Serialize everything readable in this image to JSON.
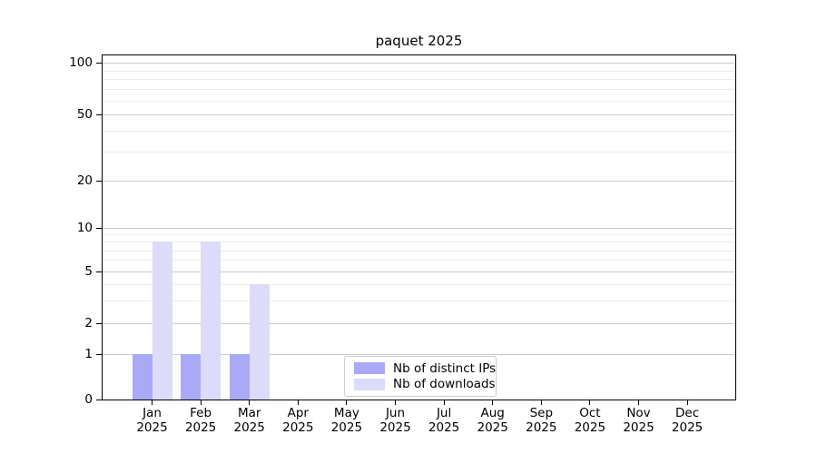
{
  "chart_data": {
    "type": "bar",
    "title": "paquet 2025",
    "categories": [
      "Jan",
      "Feb",
      "Mar",
      "Apr",
      "May",
      "Jun",
      "Jul",
      "Aug",
      "Sep",
      "Oct",
      "Nov",
      "Dec"
    ],
    "year_label": "2025",
    "series": [
      {
        "name": "Nb of distinct IPs",
        "color": "#aaa9f7",
        "values": [
          1,
          1,
          1,
          0,
          0,
          0,
          0,
          0,
          0,
          0,
          0,
          0
        ]
      },
      {
        "name": "Nb of downloads",
        "color": "#dcdbfa",
        "values": [
          8,
          8,
          4,
          0,
          0,
          0,
          0,
          0,
          0,
          0,
          0,
          0
        ]
      }
    ],
    "y_axis": {
      "scale": "symlog",
      "tick_values": [
        0,
        1,
        2,
        5,
        10,
        20,
        50,
        100
      ],
      "minor_tick_values": [
        3,
        4,
        6,
        7,
        8,
        9,
        30,
        40,
        60,
        70,
        80,
        90
      ],
      "ylim": [
        0,
        150
      ]
    },
    "legend": {
      "position": "bottom-center"
    },
    "grid": {
      "on": true,
      "major_color": "#c9c9c9",
      "minor_color": "#ececec"
    }
  }
}
